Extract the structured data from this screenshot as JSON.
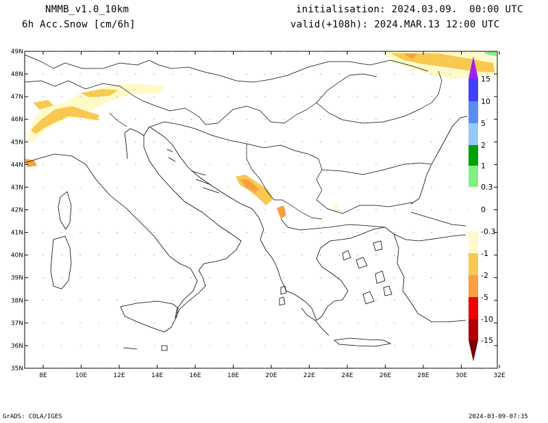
{
  "header": {
    "model": "NMMB_v1.0_10km",
    "variable": "6h Acc.Snow [cm/6h]",
    "init": "initialisation: 2024.03.09.  00:00 UTC",
    "valid": "valid(+108h): 2024.MAR.13 12:00 UTC"
  },
  "footer": {
    "left": "GrADS: COLA/IGES",
    "right": "2024-03-09-07:35"
  },
  "map": {
    "lat_labels": [
      "49N",
      "48N",
      "47N",
      "46N",
      "45N",
      "44N",
      "43N",
      "42N",
      "41N",
      "40N",
      "39N",
      "38N",
      "37N",
      "36N",
      "35N"
    ],
    "lon_labels": [
      "8E",
      "10E",
      "12E",
      "14E",
      "16E",
      "18E",
      "20E",
      "22E",
      "24E",
      "26E",
      "28E",
      "30E",
      "32E"
    ]
  },
  "legend": {
    "labels": [
      "15",
      "10",
      "5",
      "2",
      "1",
      "0.3",
      "0",
      "-0.3",
      "-1",
      "-2",
      "-5",
      "-10",
      "-15"
    ],
    "colors": {
      "purple": "#a020f0",
      "blue_dark": "#4040ff",
      "blue": "#5a8cf0",
      "blue_light": "#96c8f8",
      "green_dark": "#00a000",
      "green_light": "#80f080",
      "white": "#ffffff",
      "cream": "#fffac8",
      "yellow": "#f8c850",
      "orange": "#f8a040",
      "red": "#f00000",
      "red_dark": "#b40000",
      "maroon": "#780000"
    }
  }
}
